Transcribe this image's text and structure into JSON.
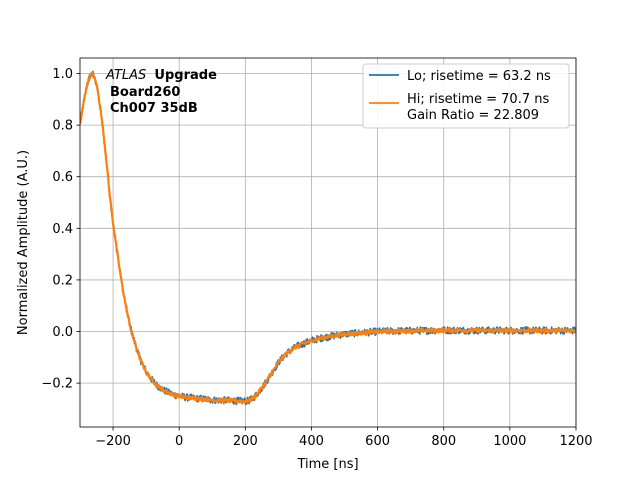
{
  "chart_data": {
    "type": "line",
    "title": "",
    "xlabel": "Time [ns]",
    "ylabel": "Normalized Amplitude (A.U.)",
    "xlim": [
      -300,
      1200
    ],
    "ylim": [
      -0.37,
      1.06
    ],
    "xticks": [
      -200,
      0,
      200,
      400,
      600,
      800,
      1000,
      1200
    ],
    "xtick_labels": [
      "−200",
      "0",
      "200",
      "400",
      "600",
      "800",
      "1000",
      "1200"
    ],
    "yticks": [
      -0.2,
      0.0,
      0.2,
      0.4,
      0.6,
      0.8,
      1.0
    ],
    "ytick_labels": [
      "−0.2",
      "0.0",
      "0.2",
      "0.4",
      "0.6",
      "0.8",
      "1.0"
    ],
    "grid": true,
    "legend_position": "top-right",
    "annotation": {
      "experiment_italic": "ATLAS",
      "experiment_bold": "Upgrade",
      "line2": "Board260",
      "line3": "Ch007 35dB"
    },
    "series": [
      {
        "name": "Lo; risetime = 63.2 ns",
        "color": "#1f77b4",
        "noise": 0.014,
        "x": [
          -300,
          -290,
          -280,
          -270,
          -262,
          -250,
          -240,
          -230,
          -220,
          -210,
          -200,
          -190,
          -180,
          -170,
          -160,
          -150,
          -140,
          -130,
          -120,
          -110,
          -100,
          -90,
          -80,
          -70,
          -60,
          -50,
          -40,
          -30,
          -20,
          -10,
          0,
          20,
          40,
          60,
          80,
          100,
          120,
          140,
          160,
          180,
          200,
          210,
          220,
          230,
          240,
          250,
          260,
          270,
          280,
          290,
          300,
          320,
          340,
          360,
          380,
          400,
          430,
          460,
          500,
          550,
          600,
          650,
          700,
          750,
          800,
          850,
          900,
          950,
          1000,
          1050,
          1100,
          1150,
          1200
        ],
        "y": [
          0.8,
          0.88,
          0.95,
          0.99,
          1.0,
          0.96,
          0.88,
          0.78,
          0.66,
          0.53,
          0.42,
          0.33,
          0.24,
          0.16,
          0.09,
          0.03,
          -0.02,
          -0.06,
          -0.1,
          -0.13,
          -0.155,
          -0.175,
          -0.19,
          -0.205,
          -0.215,
          -0.225,
          -0.232,
          -0.238,
          -0.243,
          -0.247,
          -0.25,
          -0.255,
          -0.258,
          -0.26,
          -0.262,
          -0.265,
          -0.266,
          -0.267,
          -0.268,
          -0.269,
          -0.27,
          -0.268,
          -0.262,
          -0.25,
          -0.235,
          -0.218,
          -0.2,
          -0.18,
          -0.16,
          -0.14,
          -0.12,
          -0.09,
          -0.07,
          -0.055,
          -0.045,
          -0.035,
          -0.025,
          -0.018,
          -0.01,
          -0.005,
          0.0,
          0.002,
          0.003,
          0.004,
          0.005,
          0.005,
          0.004,
          0.004,
          0.004,
          0.004,
          0.004,
          0.004,
          0.004
        ]
      },
      {
        "name": "Hi; risetime = 70.7 ns\n Gain Ratio = 22.809",
        "color": "#ff7f0e",
        "noise": 0.007,
        "x": [
          -300,
          -290,
          -280,
          -270,
          -262,
          -250,
          -240,
          -230,
          -220,
          -210,
          -200,
          -190,
          -180,
          -170,
          -160,
          -150,
          -140,
          -130,
          -120,
          -110,
          -100,
          -90,
          -80,
          -70,
          -60,
          -50,
          -40,
          -30,
          -20,
          -10,
          0,
          20,
          40,
          60,
          80,
          100,
          120,
          140,
          160,
          180,
          200,
          210,
          220,
          230,
          240,
          250,
          260,
          270,
          280,
          290,
          300,
          320,
          340,
          360,
          380,
          400,
          430,
          460,
          500,
          550,
          600,
          650,
          700,
          750,
          800,
          850,
          900,
          950,
          1000,
          1050,
          1100,
          1150,
          1200
        ],
        "y": [
          0.8,
          0.88,
          0.95,
          0.99,
          1.0,
          0.96,
          0.88,
          0.78,
          0.66,
          0.53,
          0.42,
          0.33,
          0.24,
          0.16,
          0.09,
          0.03,
          -0.02,
          -0.06,
          -0.1,
          -0.13,
          -0.155,
          -0.175,
          -0.19,
          -0.205,
          -0.215,
          -0.225,
          -0.232,
          -0.238,
          -0.243,
          -0.247,
          -0.25,
          -0.255,
          -0.258,
          -0.26,
          -0.262,
          -0.265,
          -0.266,
          -0.267,
          -0.268,
          -0.269,
          -0.27,
          -0.268,
          -0.262,
          -0.25,
          -0.235,
          -0.218,
          -0.2,
          -0.18,
          -0.16,
          -0.14,
          -0.12,
          -0.09,
          -0.07,
          -0.055,
          -0.045,
          -0.035,
          -0.025,
          -0.018,
          -0.01,
          -0.005,
          0.0,
          0.002,
          0.003,
          0.004,
          0.005,
          0.005,
          0.004,
          0.004,
          0.004,
          0.004,
          0.004,
          0.004,
          0.004
        ]
      }
    ]
  }
}
